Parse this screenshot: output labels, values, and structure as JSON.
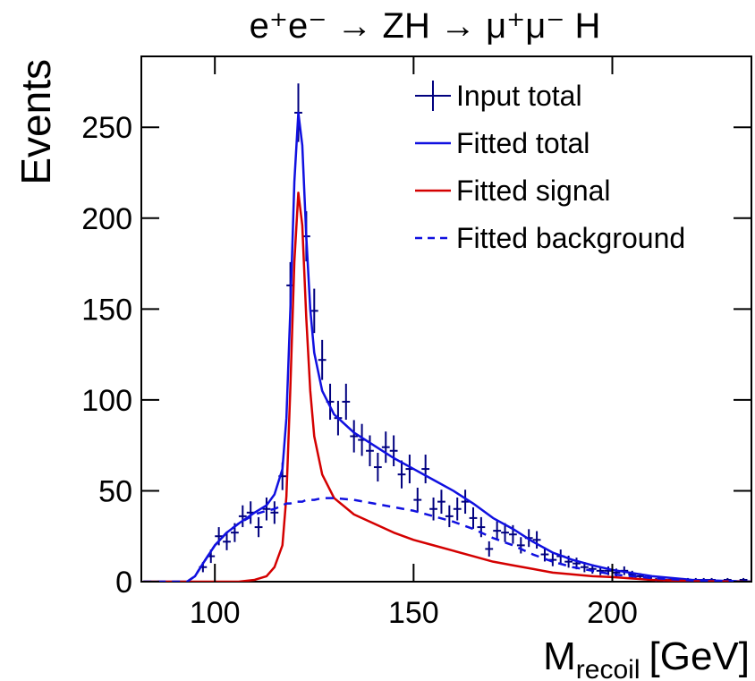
{
  "chart_data": {
    "type": "line",
    "title": "e⁺e⁻ → ZH → μ⁺μ⁻ H",
    "xlabel": {
      "main": "M",
      "sub": "recoil",
      "unit": "[GeV]"
    },
    "ylabel": "Events",
    "xlim": [
      81.5,
      235
    ],
    "ylim": [
      0,
      289
    ],
    "xticks": [
      100,
      150,
      200
    ],
    "yticks": [
      0,
      50,
      100,
      150,
      200,
      250
    ],
    "legend": "top-right",
    "series": [
      {
        "name": "Input total",
        "color": "#00007f",
        "style": "errorbar",
        "x": [
          97,
          99,
          101,
          103,
          105,
          107,
          109,
          111,
          113,
          115,
          117,
          119,
          121,
          123,
          125,
          127,
          129,
          131,
          133,
          135,
          137,
          139,
          141,
          143,
          145,
          147,
          149,
          151,
          153,
          155,
          157,
          159,
          161,
          163,
          165,
          167,
          169,
          171,
          173,
          175,
          177,
          179,
          181,
          183,
          185,
          187,
          189,
          191,
          193,
          195,
          197,
          199,
          201,
          203,
          205,
          207,
          209,
          211,
          213,
          215,
          217,
          219,
          221,
          223,
          225,
          227,
          229,
          231,
          233
        ],
        "values": [
          8,
          14,
          25,
          22,
          27,
          36,
          38,
          30,
          40,
          38,
          58,
          163,
          258,
          190,
          149,
          122,
          99,
          90,
          99,
          80,
          78,
          72,
          63,
          74,
          72,
          59,
          62,
          45,
          62,
          40,
          44,
          36,
          40,
          44,
          35,
          30,
          18,
          28,
          27,
          26,
          20,
          24,
          23,
          15,
          12,
          14,
          11,
          10,
          8,
          7,
          6,
          6,
          5,
          6,
          4,
          3,
          2,
          1,
          1,
          1,
          1,
          1,
          1,
          1,
          1,
          0,
          1,
          0,
          1
        ],
        "errors": [
          2.8,
          3.7,
          5,
          4.7,
          5.2,
          6,
          6.2,
          5.5,
          6.3,
          6.2,
          7.6,
          12.8,
          16.1,
          13.8,
          12.2,
          11,
          9.9,
          9.5,
          9.9,
          8.9,
          8.8,
          8.5,
          7.9,
          8.6,
          8.5,
          7.7,
          7.9,
          6.7,
          7.9,
          6.3,
          6.6,
          6,
          6.3,
          6.6,
          5.9,
          5.5,
          4.2,
          5.3,
          5.2,
          5.1,
          4.5,
          4.9,
          4.8,
          3.9,
          3.5,
          3.7,
          3.3,
          3.2,
          2.8,
          2.6,
          2.4,
          2.4,
          2.2,
          2.4,
          2,
          1.7,
          1.4,
          1,
          1,
          1,
          1,
          1,
          1,
          1,
          1,
          0,
          1,
          0,
          1
        ]
      },
      {
        "name": "Fitted total",
        "color": "#1010e0",
        "style": "solid",
        "x": [
          82,
          90,
          93,
          95,
          97,
          100,
          103,
          106,
          110,
          113,
          115,
          117,
          118,
          119,
          120,
          121,
          122,
          123,
          124,
          125,
          127,
          130,
          135,
          140,
          145,
          150,
          155,
          160,
          165,
          170,
          175,
          180,
          185,
          190,
          195,
          200,
          210,
          220,
          235
        ],
        "values": [
          0,
          0,
          0,
          3,
          10,
          20,
          27,
          32,
          38,
          42,
          48,
          62,
          90,
          150,
          220,
          258,
          240,
          190,
          150,
          126,
          105,
          92,
          82,
          75,
          68,
          62,
          56,
          50,
          43,
          35,
          29,
          22,
          16,
          12,
          9,
          6.5,
          3,
          1,
          0
        ]
      },
      {
        "name": "Fitted signal",
        "color": "#d40000",
        "style": "solid",
        "x": [
          82,
          90,
          93,
          95,
          97,
          100,
          103,
          106,
          110,
          113,
          115,
          117,
          118,
          119,
          120,
          121,
          122,
          123,
          124,
          125,
          127,
          130,
          135,
          140,
          145,
          150,
          155,
          160,
          165,
          170,
          175,
          180,
          185,
          190,
          195,
          200,
          210,
          220,
          235
        ],
        "values": [
          0,
          0,
          0,
          0,
          0,
          0,
          0,
          0,
          1,
          3,
          8,
          20,
          47,
          107,
          176,
          214,
          196,
          145,
          105,
          80,
          59,
          46,
          37,
          32,
          27,
          23,
          20,
          17,
          14,
          11,
          9,
          7,
          5,
          4,
          3,
          2.5,
          1,
          0.3,
          0
        ]
      },
      {
        "name": "Fitted background",
        "color": "#1010e0",
        "style": "dashed",
        "x": [
          82,
          90,
          93,
          95,
          97,
          100,
          103,
          106,
          110,
          113,
          115,
          117,
          118,
          119,
          120,
          121,
          122,
          123,
          124,
          125,
          127,
          130,
          135,
          140,
          145,
          150,
          155,
          160,
          165,
          170,
          175,
          180,
          185,
          190,
          195,
          200,
          210,
          220,
          235
        ],
        "values": [
          0,
          0,
          0,
          3,
          10,
          20,
          27,
          32,
          37,
          39,
          40,
          42,
          43,
          43,
          44,
          44,
          44,
          45,
          45,
          45,
          46,
          46,
          45,
          43,
          41,
          39,
          36,
          33,
          29,
          24,
          20,
          15,
          11,
          8,
          6,
          4,
          2,
          0.7,
          0
        ]
      }
    ]
  }
}
